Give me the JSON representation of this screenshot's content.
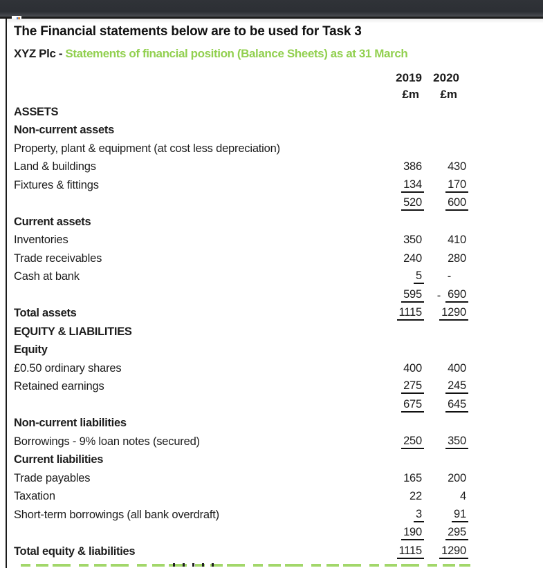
{
  "chrome": {
    "bar_color": "#2e3136"
  },
  "colors": {
    "accent_green": "#92d050",
    "text": "#1c1c1c"
  },
  "doc": {
    "title": "The Financial statements below are to be used for Task 3",
    "subtitle_prefix": "XYZ Plc - ",
    "subtitle_green": "Statements of financial position (Balance Sheets) as at 31 March"
  },
  "columns": {
    "year_1": "2019",
    "year_2": "2020",
    "unit_1": "£m",
    "unit_2": "£m"
  },
  "table": {
    "rows": [
      {
        "label": "ASSETS",
        "bold": true,
        "v1": "",
        "v2": ""
      },
      {
        "label": "Non-current assets",
        "bold": true,
        "v1": "",
        "v2": ""
      },
      {
        "label": "Property, plant & equipment (at cost less depreciation)",
        "v1": "",
        "v2": ""
      },
      {
        "label": "Land & buildings",
        "v1": "386",
        "v2": "430"
      },
      {
        "label": "Fixtures & fittings",
        "v1": "134",
        "v2": "170",
        "u1": true,
        "u2": true
      },
      {
        "label": "",
        "v1": "520",
        "v2": "600",
        "u1": true,
        "u2": true
      },
      {
        "label": "Current assets",
        "bold": true,
        "v1": "",
        "v2": ""
      },
      {
        "label": "Inventories",
        "v1": "350",
        "v2": "410"
      },
      {
        "label": "Trade receivables",
        "v1": "240",
        "v2": "280"
      },
      {
        "label": "Cash at bank",
        "v1": "5",
        "v2": "-",
        "u1": true,
        "dash2": true
      },
      {
        "label": "",
        "v1": "595",
        "v2": "690",
        "u1": true,
        "u2": true,
        "predash2": "-"
      },
      {
        "label": "Total assets",
        "bold": true,
        "v1": "1115",
        "v2": "1290",
        "u1": true,
        "u2": true
      },
      {
        "label": "EQUITY & LIABILITIES",
        "bold": true,
        "v1": "",
        "v2": ""
      },
      {
        "label": "Equity",
        "bold": true,
        "v1": "",
        "v2": ""
      },
      {
        "label": "£0.50 ordinary shares",
        "v1": "400",
        "v2": "400"
      },
      {
        "label": "Retained earnings",
        "v1": "275",
        "v2": "245",
        "u1": true,
        "u2": true
      },
      {
        "label": "",
        "v1": "675",
        "v2": "645",
        "u1": true,
        "u2": true
      },
      {
        "label": "Non-current liabilities",
        "bold": true,
        "v1": "",
        "v2": ""
      },
      {
        "label": "Borrowings - 9% loan notes (secured)",
        "v1": "250",
        "v2": "350",
        "u1": true,
        "u2": true
      },
      {
        "label": "Current liabilities",
        "bold": true,
        "v1": "",
        "v2": ""
      },
      {
        "label": "Trade payables",
        "v1": "165",
        "v2": "200"
      },
      {
        "label": "Taxation",
        "v1": "22",
        "v2": "4"
      },
      {
        "label": "Short-term borrowings (all bank overdraft)",
        "v1": "3",
        "v2": "91",
        "u1": true,
        "u2": true
      },
      {
        "label": "",
        "v1": "190",
        "v2": "295",
        "u1": true,
        "u2": true
      },
      {
        "label": "Total equity & liabilities",
        "bold": true,
        "v1": "1115",
        "v2": "1290",
        "u1": true,
        "u2": true
      }
    ]
  }
}
